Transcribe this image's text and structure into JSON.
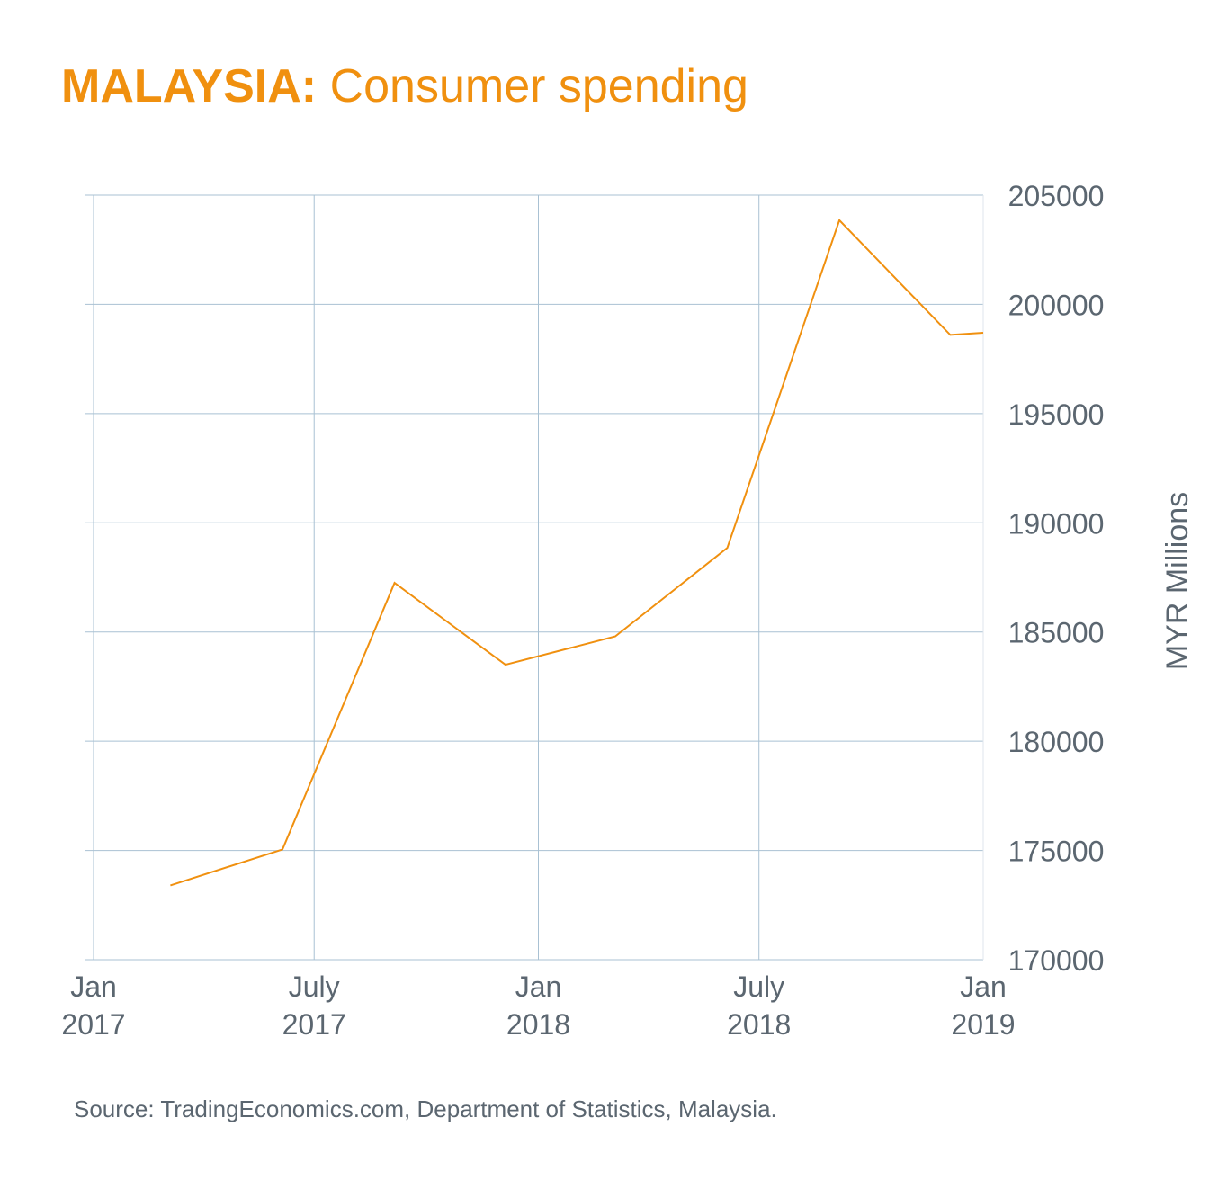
{
  "title": {
    "country": "MALAYSIA:",
    "subject": "Consumer spending"
  },
  "source": "Source: TradingEconomics.com, Department of Statistics, Malaysia.",
  "colors": {
    "line": "#f0900f",
    "grid": "#a9c1d3",
    "text": "#5b6670"
  },
  "chart_data": {
    "type": "line",
    "title": "MALAYSIA: Consumer spending",
    "xlabel": "",
    "ylabel": "MYR Millions",
    "y_axis_position": "right",
    "grid": true,
    "ylim": [
      170000,
      205000
    ],
    "yticks": [
      170000,
      175000,
      180000,
      185000,
      190000,
      195000,
      200000,
      205000
    ],
    "xlim": [
      "2017-01-01",
      "2019-01-01"
    ],
    "xticks": [
      {
        "date": "2017-01-01",
        "month": "Jan",
        "year": "2017"
      },
      {
        "date": "2017-07-01",
        "month": "July",
        "year": "2017"
      },
      {
        "date": "2018-01-01",
        "month": "Jan",
        "year": "2018"
      },
      {
        "date": "2018-07-01",
        "month": "July",
        "year": "2018"
      },
      {
        "date": "2019-01-01",
        "month": "Jan",
        "year": "2019"
      }
    ],
    "series": [
      {
        "points": [
          {
            "x": "2017-03-05",
            "y": 173400
          },
          {
            "x": "2017-06-05",
            "y": 175050
          },
          {
            "x": "2017-09-05",
            "y": 187250
          },
          {
            "x": "2017-12-05",
            "y": 183500
          },
          {
            "x": "2018-03-05",
            "y": 184800
          },
          {
            "x": "2018-06-05",
            "y": 188850
          },
          {
            "x": "2018-09-05",
            "y": 203850
          },
          {
            "x": "2018-12-05",
            "y": 198600
          },
          {
            "x": "2019-01-01",
            "y": 198700
          }
        ]
      }
    ]
  }
}
